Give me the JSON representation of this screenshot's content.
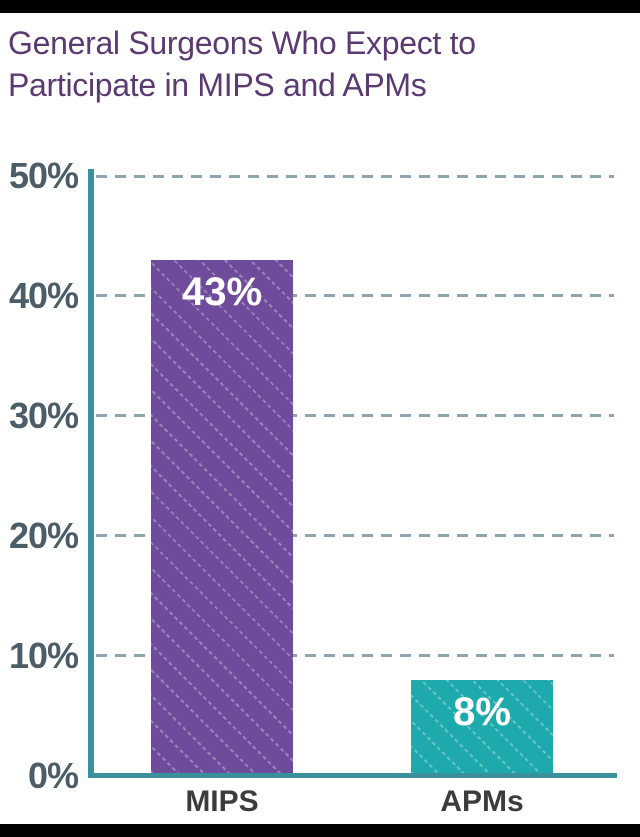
{
  "frame": {
    "top_bar_color": "#000000",
    "bottom_bar_color": "#000000",
    "background": "#ffffff"
  },
  "title": {
    "text": "General Surgeons Who Expect to Participate in MIPS and APMs",
    "line1": "General Surgeons Who Expect to",
    "line2": "Participate in MIPS and APMs",
    "color": "#5b3a72"
  },
  "chart_data": {
    "type": "bar",
    "title": "General Surgeons Who Expect to Participate in MIPS and APMs",
    "categories": [
      "MIPS",
      "APMs"
    ],
    "values": [
      43,
      8
    ],
    "value_labels": [
      "43%",
      "8%"
    ],
    "bar_colors": [
      "#6f4c9b",
      "#1ea9ac"
    ],
    "bar_pattern": "diagonal-dotted-lines",
    "xlabel": "",
    "ylabel": "",
    "ylim": [
      0,
      50
    ],
    "yticks": [
      {
        "value": 0,
        "label": "0%"
      },
      {
        "value": 10,
        "label": "10%"
      },
      {
        "value": 20,
        "label": "20%"
      },
      {
        "value": 30,
        "label": "30%"
      },
      {
        "value": 40,
        "label": "40%"
      },
      {
        "value": 50,
        "label": "50%"
      }
    ],
    "grid": "horizontal-dashed",
    "legend": "none",
    "colors": {
      "axis": "#3a919c",
      "gridline": "#90a4af",
      "ytick_text": "#4b5d68",
      "xtick_text": "#3c3c3e",
      "value_label_text": "#ffffff"
    }
  }
}
